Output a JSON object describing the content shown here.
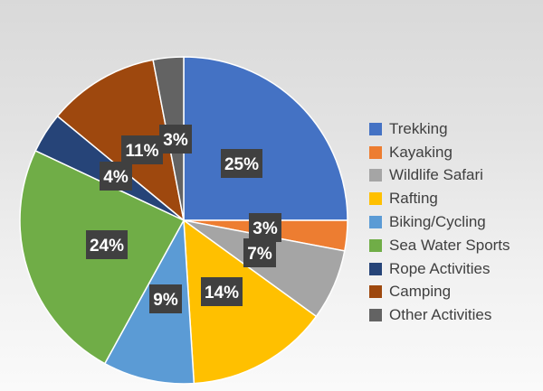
{
  "chart_data": {
    "type": "pie",
    "title": "",
    "legend_position": "right",
    "series": [
      {
        "name": "Trekking",
        "value": 25,
        "label": "25%",
        "color": "#4472c4"
      },
      {
        "name": "Kayaking",
        "value": 3,
        "label": "3%",
        "color": "#ed7d31"
      },
      {
        "name": "Wildlife Safari",
        "value": 7,
        "label": "7%",
        "color": "#a5a5a5"
      },
      {
        "name": "Rafting",
        "value": 14,
        "label": "14%",
        "color": "#ffc000"
      },
      {
        "name": "Biking/Cycling",
        "value": 9,
        "label": "9%",
        "color": "#5b9bd5"
      },
      {
        "name": "Sea Water Sports",
        "value": 24,
        "label": "24%",
        "color": "#70ad47"
      },
      {
        "name": "Rope Activities",
        "value": 4,
        "label": "4%",
        "color": "#264478"
      },
      {
        "name": "Camping",
        "value": 11,
        "label": "11%",
        "color": "#9e480e"
      },
      {
        "name": "Other Activities",
        "value": 3,
        "label": "3%",
        "color": "#636363"
      }
    ]
  }
}
